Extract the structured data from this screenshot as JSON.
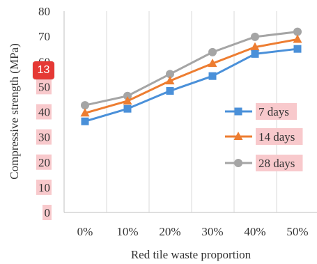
{
  "badge": {
    "value": "13",
    "color": "#e53935"
  },
  "chart_data": {
    "type": "line",
    "title": "",
    "xlabel": "Red tile waste proportion",
    "ylabel": "Compressive strength (MPa)",
    "categories": [
      "0%",
      "10%",
      "20%",
      "30%",
      "40%",
      "50%"
    ],
    "ylim": [
      0,
      80
    ],
    "yticks": [
      0,
      10,
      20,
      30,
      40,
      50,
      60,
      70,
      80
    ],
    "grid": "vertical",
    "legend_position": "right",
    "highlight_color": "#f8c9cc",
    "series": [
      {
        "name": "7 days",
        "values": [
          36.2,
          41.2,
          48.3,
          54.2,
          63.0,
          65.0
        ],
        "color": "#4a90d9",
        "marker": "square"
      },
      {
        "name": "14 days",
        "values": [
          39.5,
          44.3,
          52.3,
          59.2,
          65.7,
          68.8
        ],
        "color": "#ed7d31",
        "marker": "triangle"
      },
      {
        "name": "28 days",
        "values": [
          42.6,
          46.3,
          55.0,
          63.7,
          69.8,
          71.8
        ],
        "color": "#a5a5a5",
        "marker": "circle"
      }
    ]
  }
}
